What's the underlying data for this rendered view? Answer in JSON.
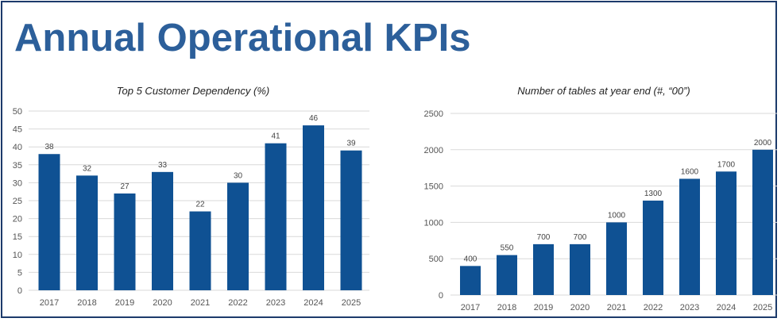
{
  "page": {
    "title": "Annual Operational KPIs"
  },
  "colors": {
    "bar": "#0f5193",
    "title": "#2c5f9a",
    "border": "#1c3a6b"
  },
  "chart_data": [
    {
      "type": "bar",
      "title": "Top 5 Customer Dependency (%)",
      "xlabel": "",
      "ylabel": "",
      "categories": [
        "2017",
        "2018",
        "2019",
        "2020",
        "2021",
        "2022",
        "2023",
        "2024",
        "2025"
      ],
      "values": [
        38,
        32,
        27,
        33,
        22,
        30,
        41,
        46,
        39
      ],
      "ylim": [
        0,
        50
      ],
      "yticks": [
        0,
        5,
        10,
        15,
        20,
        25,
        30,
        35,
        40,
        45,
        50
      ],
      "grid": true,
      "data_labels": true
    },
    {
      "type": "bar",
      "title": "Number of tables at year end (#, “00”)",
      "xlabel": "",
      "ylabel": "",
      "categories": [
        "2017",
        "2018",
        "2019",
        "2020",
        "2021",
        "2022",
        "2023",
        "2024",
        "2025"
      ],
      "values": [
        400,
        550,
        700,
        700,
        1000,
        1300,
        1600,
        1700,
        2000
      ],
      "ylim": [
        0,
        2500
      ],
      "yticks": [
        0,
        500,
        1000,
        1500,
        2000,
        2500
      ],
      "grid": true,
      "data_labels": true
    }
  ]
}
